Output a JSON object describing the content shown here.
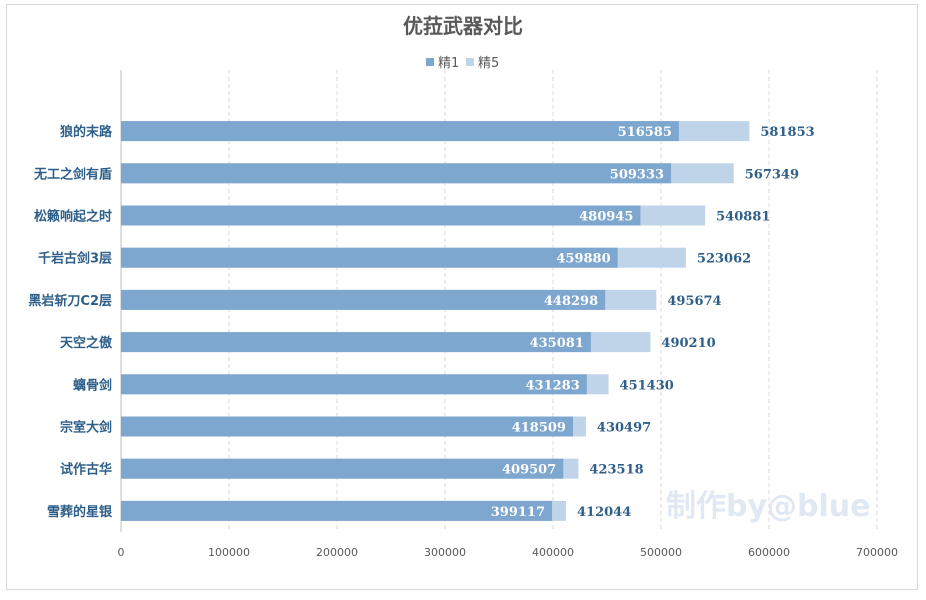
{
  "colors": {
    "series_1": "#7ea7cf",
    "series_2": "#bfd4e8",
    "label_dark": "#2e5f8a",
    "grid": "#d9d9d9"
  },
  "watermark": "制作by@blue",
  "chart_data": {
    "type": "bar",
    "orientation": "horizontal",
    "stacked_overlay": true,
    "title": "优菈武器对比",
    "legend_position": "top",
    "categories": [
      "狼的末路",
      "无工之剑有盾",
      "松籁响起之时",
      "千岩古剑3层",
      "黑岩斩刀C2层",
      "天空之傲",
      "螭骨剑",
      "宗室大剑",
      "试作古华",
      "雪葬的星银"
    ],
    "series": [
      {
        "name": "精1",
        "values": [
          516585,
          509333,
          480945,
          459880,
          448298,
          435081,
          431283,
          418509,
          409507,
          399117
        ]
      },
      {
        "name": "精5",
        "values": [
          581853,
          567349,
          540881,
          523062,
          495674,
          490210,
          451430,
          430497,
          423518,
          412044
        ]
      }
    ],
    "xlim": [
      0,
      700000
    ],
    "xticks": [
      "0",
      "100000",
      "200000",
      "300000",
      "400000",
      "500000",
      "600000",
      "700000"
    ],
    "grid": true
  }
}
